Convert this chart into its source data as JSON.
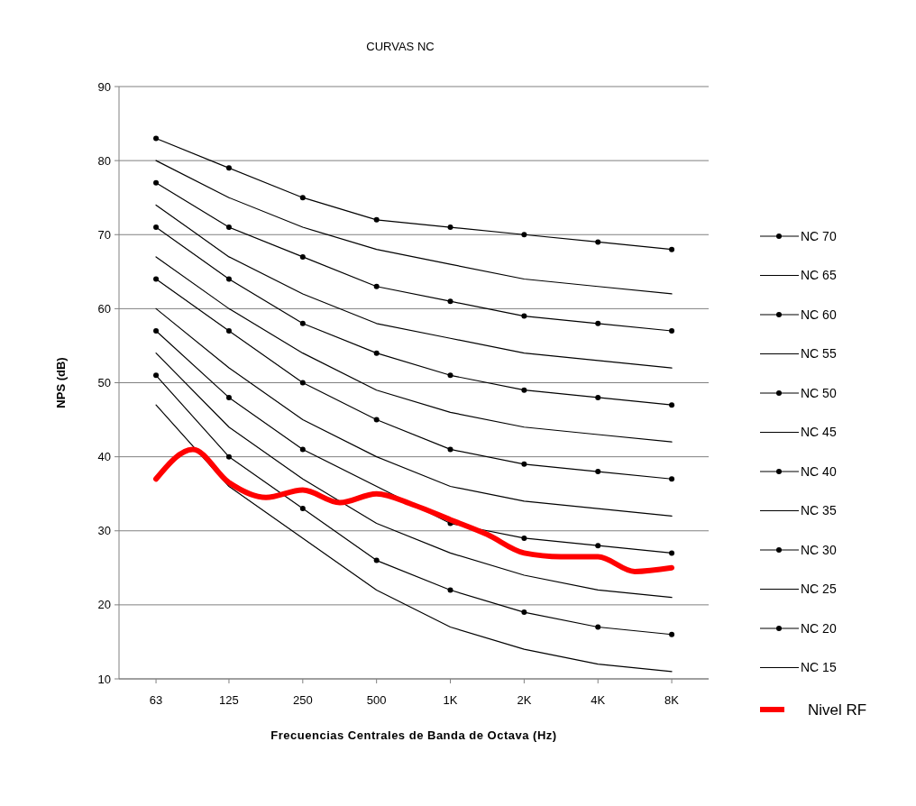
{
  "chart_data": {
    "type": "line",
    "title": "CURVAS NC",
    "xlabel": "Frecuencias Centrales de Banda de Octava  (Hz)",
    "ylabel": "NPS (dB)",
    "log": "x",
    "x": [
      63,
      125,
      250,
      500,
      1000,
      2000,
      4000,
      8000
    ],
    "xlim": [
      44.5,
      11314
    ],
    "xticks": [
      63,
      125,
      250,
      500,
      {
        "value": 1000,
        "label": "1K"
      },
      {
        "value": 2000,
        "label": "2K"
      },
      {
        "value": 4000,
        "label": "4K"
      },
      {
        "value": 8000,
        "label": "8K"
      }
    ],
    "ylim": [
      10,
      90
    ],
    "yticks": [
      10,
      20,
      30,
      40,
      50,
      60,
      70,
      80,
      90
    ],
    "grid": "y",
    "legend": "right",
    "series": [
      {
        "name": "NC 70",
        "color": "#000000",
        "marker": "circle",
        "values": [
          83,
          79,
          75,
          72,
          71,
          70,
          69,
          68
        ]
      },
      {
        "name": "NC 65",
        "color": "#000000",
        "marker": "none",
        "values": [
          80,
          75,
          71,
          68,
          66,
          64,
          63,
          62
        ]
      },
      {
        "name": "NC 60",
        "color": "#000000",
        "marker": "circle",
        "values": [
          77,
          71,
          67,
          63,
          61,
          59,
          58,
          57
        ]
      },
      {
        "name": "NC 55",
        "color": "#000000",
        "marker": "none",
        "values": [
          74,
          67,
          62,
          58,
          56,
          54,
          53,
          52
        ]
      },
      {
        "name": "NC 50",
        "color": "#000000",
        "marker": "circle",
        "values": [
          71,
          64,
          58,
          54,
          51,
          49,
          48,
          47
        ]
      },
      {
        "name": "NC 45",
        "color": "#000000",
        "marker": "none",
        "values": [
          67,
          60,
          54,
          49,
          46,
          44,
          43,
          42
        ]
      },
      {
        "name": "NC 40",
        "color": "#000000",
        "marker": "circle",
        "values": [
          64,
          57,
          50,
          45,
          41,
          39,
          38,
          37
        ]
      },
      {
        "name": "NC 35",
        "color": "#000000",
        "marker": "none",
        "values": [
          60,
          52,
          45,
          40,
          36,
          34,
          33,
          32
        ]
      },
      {
        "name": "NC 30",
        "color": "#000000",
        "marker": "circle",
        "values": [
          57,
          48,
          41,
          null,
          31,
          29,
          28,
          27
        ]
      },
      {
        "name": "NC 25",
        "color": "#000000",
        "marker": "none",
        "values": [
          54,
          44,
          37,
          31,
          27,
          24,
          22,
          21
        ]
      },
      {
        "name": "NC 20",
        "color": "#000000",
        "marker": "circle",
        "values": [
          51,
          40,
          33,
          26,
          22,
          19,
          17,
          16
        ]
      },
      {
        "name": "NC 15",
        "color": "#000000",
        "marker": "none",
        "values": [
          47,
          36,
          29,
          22,
          17,
          14,
          12,
          11
        ]
      },
      {
        "name": "Nivel RF",
        "color": "#ff0000",
        "marker": "none",
        "x": [
          63,
          89,
          125,
          177,
          250,
          354,
          500,
          707,
          1000,
          1414,
          2000,
          2828,
          4000,
          5657,
          8000
        ],
        "values": [
          37,
          41,
          36.5,
          34.5,
          35.5,
          33.8,
          35,
          33.5,
          31.5,
          29.5,
          27,
          26.5,
          26.5,
          24.5,
          25
        ]
      }
    ]
  }
}
